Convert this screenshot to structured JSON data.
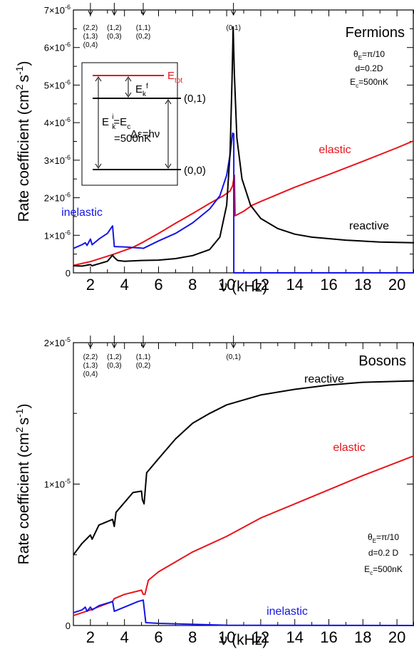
{
  "chart_data": [
    {
      "type": "line",
      "title": "Fermions",
      "xlabel": "ν (kHz)",
      "ylabel": "Rate coefficient (cm^2 s^-1)",
      "xlim": [
        1,
        21
      ],
      "ylim": [
        0,
        7e-06
      ],
      "xticks": [
        2,
        4,
        6,
        8,
        10,
        12,
        14,
        16,
        18,
        20
      ],
      "yticks": [
        {
          "v": 0,
          "base": "0",
          "exp": ""
        },
        {
          "v": 1e-06,
          "base": "1×10",
          "exp": "-6"
        },
        {
          "v": 2e-06,
          "base": "2×10",
          "exp": "-6"
        },
        {
          "v": 3e-06,
          "base": "3×10",
          "exp": "-6"
        },
        {
          "v": 4e-06,
          "base": "4×10",
          "exp": "-6"
        },
        {
          "v": 5e-06,
          "base": "5×10",
          "exp": "-6"
        },
        {
          "v": 6e-06,
          "base": "6×10",
          "exp": "-6"
        },
        {
          "v": 7e-06,
          "base": "7×10",
          "exp": "-6"
        }
      ],
      "params": [
        "θ_E=π/10",
        "d=0.2D",
        "E_c=500nK"
      ],
      "resonances": [
        {
          "x": 2.0,
          "lines": [
            "(2,2)",
            "(1,3)",
            "(0,4)"
          ]
        },
        {
          "x": 3.4,
          "lines": [
            "(1,2)",
            "(0,3)"
          ]
        },
        {
          "x": 5.1,
          "lines": [
            "(1,1)",
            "(0,2)"
          ]
        },
        {
          "x": 10.4,
          "lines": [
            "(0,1)"
          ]
        }
      ],
      "inset": {
        "e_tot": "E_tot",
        "ekf": "E_k^f",
        "level01": "(0,1)",
        "level00": "(0,0)",
        "eki_line1": "E_k^i=E_c",
        "eki_line2": "=500nK",
        "delta": "Δε=hν"
      },
      "series": [
        {
          "name": "elastic",
          "color": "#e8141b",
          "points": [
            [
              1.0,
              2e-07
            ],
            [
              2.0,
              3e-07
            ],
            [
              2.7,
              4e-07
            ],
            [
              3.4,
              5e-07
            ],
            [
              4.5,
              6.8e-07
            ],
            [
              5.1,
              8.2e-07
            ],
            [
              6,
              1.05e-06
            ],
            [
              7,
              1.32e-06
            ],
            [
              8,
              1.58e-06
            ],
            [
              9,
              1.85e-06
            ],
            [
              9.8,
              2.05e-06
            ],
            [
              10.2,
              2.18e-06
            ],
            [
              10.35,
              2.32e-06
            ],
            [
              10.45,
              2.6e-06
            ],
            [
              10.5,
              1.52e-06
            ],
            [
              11.0,
              1.64e-06
            ],
            [
              11.5,
              1.8e-06
            ],
            [
              12,
              1.9e-06
            ],
            [
              14,
              2.28e-06
            ],
            [
              16,
              2.62e-06
            ],
            [
              18,
              2.97e-06
            ],
            [
              20,
              3.33e-06
            ],
            [
              21,
              3.52e-06
            ]
          ]
        },
        {
          "name": "inelastic",
          "color": "#1515e6",
          "points": [
            [
              1.0,
              6.5e-07
            ],
            [
              1.5,
              7.5e-07
            ],
            [
              1.7,
              8e-07
            ],
            [
              1.8,
              7.3e-07
            ],
            [
              2.0,
              9e-07
            ],
            [
              2.1,
              7.5e-07
            ],
            [
              2.5,
              9e-07
            ],
            [
              3.0,
              1.05e-06
            ],
            [
              3.3,
              1.25e-06
            ],
            [
              3.4,
              7e-07
            ],
            [
              4.0,
              6.9e-07
            ],
            [
              5.0,
              6.6e-07
            ],
            [
              5.1,
              6.5e-07
            ],
            [
              6,
              8.5e-07
            ],
            [
              7,
              1.05e-06
            ],
            [
              8,
              1.33e-06
            ],
            [
              9,
              1.7e-06
            ],
            [
              9.6,
              2.05e-06
            ],
            [
              10.0,
              2.6e-06
            ],
            [
              10.2,
              3.15e-06
            ],
            [
              10.35,
              3.72e-06
            ],
            [
              10.42,
              3.7e-06
            ],
            [
              10.42,
              0.0
            ],
            [
              10.5,
              0.0
            ],
            [
              21,
              0.0
            ]
          ]
        },
        {
          "name": "reactive",
          "color": "#000000",
          "points": [
            [
              1.0,
              1.9e-07
            ],
            [
              1.5,
              1.8e-07
            ],
            [
              2.0,
              2.2e-07
            ],
            [
              2.1,
              1.9e-07
            ],
            [
              3.0,
              3.1e-07
            ],
            [
              3.3,
              4.7e-07
            ],
            [
              3.4,
              4.1e-07
            ],
            [
              3.6,
              3.3e-07
            ],
            [
              4,
              3.1e-07
            ],
            [
              5,
              3.3e-07
            ],
            [
              6,
              3.4e-07
            ],
            [
              7,
              3.8e-07
            ],
            [
              8,
              4.6e-07
            ],
            [
              9,
              6.2e-07
            ],
            [
              9.6,
              9.5e-07
            ],
            [
              10.0,
              1.8e-06
            ],
            [
              10.2,
              3.2e-06
            ],
            [
              10.32,
              5.2e-06
            ],
            [
              10.38,
              6.55e-06
            ],
            [
              10.45,
              5.3e-06
            ],
            [
              10.6,
              3.6e-06
            ],
            [
              10.9,
              2.5e-06
            ],
            [
              11.4,
              1.8e-06
            ],
            [
              12,
              1.45e-06
            ],
            [
              13,
              1.18e-06
            ],
            [
              14,
              1.03e-06
            ],
            [
              15,
              9.5e-07
            ],
            [
              17,
              8.7e-07
            ],
            [
              19,
              8.2e-07
            ],
            [
              21,
              8e-07
            ]
          ]
        }
      ]
    },
    {
      "type": "line",
      "title": "Bosons",
      "xlabel": "ν (kHz)",
      "ylabel": "Rate coefficient (cm^2 s^-1)",
      "xlim": [
        1,
        21
      ],
      "ylim": [
        0,
        2e-05
      ],
      "xticks": [
        2,
        4,
        6,
        8,
        10,
        12,
        14,
        16,
        18,
        20
      ],
      "yticks": [
        {
          "v": 0,
          "base": "0",
          "exp": ""
        },
        {
          "v": 1e-05,
          "base": "1×10",
          "exp": "-5"
        },
        {
          "v": 2e-05,
          "base": "2×10",
          "exp": "-5"
        }
      ],
      "params": [
        "θ_E=π/10",
        "d=0.2 D",
        "E_c=500nK"
      ],
      "resonances": [
        {
          "x": 2.0,
          "lines": [
            "(2,2)",
            "(1,3)",
            "(0,4)"
          ]
        },
        {
          "x": 3.4,
          "lines": [
            "(1,2)",
            "(0,3)"
          ]
        },
        {
          "x": 5.1,
          "lines": [
            "(1,1)",
            "(0,2)"
          ]
        },
        {
          "x": 10.4,
          "lines": [
            "(0,1)"
          ]
        }
      ],
      "series": [
        {
          "name": "reactive",
          "color": "#000000",
          "points": [
            [
              1.0,
              5e-06
            ],
            [
              1.5,
              5.8e-06
            ],
            [
              2.0,
              6.4e-06
            ],
            [
              2.1,
              6.1e-06
            ],
            [
              2.5,
              7.1e-06
            ],
            [
              3.3,
              7.5e-06
            ],
            [
              3.4,
              7e-06
            ],
            [
              3.5,
              8e-06
            ],
            [
              4.0,
              8.7e-06
            ],
            [
              4.5,
              9.4e-06
            ],
            [
              5.0,
              9.5e-06
            ],
            [
              5.05,
              8.9e-06
            ],
            [
              5.15,
              8.6e-06
            ],
            [
              5.3,
              1.08e-05
            ],
            [
              6,
              1.18e-05
            ],
            [
              7,
              1.32e-05
            ],
            [
              8,
              1.43e-05
            ],
            [
              9,
              1.5e-05
            ],
            [
              10,
              1.56e-05
            ],
            [
              12,
              1.63e-05
            ],
            [
              14,
              1.67e-05
            ],
            [
              16,
              1.7e-05
            ],
            [
              18,
              1.72e-05
            ],
            [
              21,
              1.73e-05
            ]
          ]
        },
        {
          "name": "elastic",
          "color": "#e8141b",
          "points": [
            [
              1.0,
              7e-07
            ],
            [
              2.0,
              1.1e-06
            ],
            [
              3.3,
              1.7e-06
            ],
            [
              3.4,
              1.9e-06
            ],
            [
              4.0,
              2.2e-06
            ],
            [
              5.0,
              2.5e-06
            ],
            [
              5.1,
              2.2e-06
            ],
            [
              5.2,
              2.2e-06
            ],
            [
              5.4,
              3.2e-06
            ],
            [
              6,
              3.8e-06
            ],
            [
              8,
              5.2e-06
            ],
            [
              10,
              6.3e-06
            ],
            [
              12,
              7.6e-06
            ],
            [
              14,
              8.6e-06
            ],
            [
              16,
              9.6e-06
            ],
            [
              18,
              1.06e-05
            ],
            [
              21,
              1.2e-05
            ]
          ]
        },
        {
          "name": "inelastic",
          "color": "#1515e6",
          "points": [
            [
              1.0,
              9e-07
            ],
            [
              1.5,
              1.1e-06
            ],
            [
              1.7,
              1.3e-06
            ],
            [
              1.8,
              1e-06
            ],
            [
              2.0,
              1.3e-06
            ],
            [
              2.1,
              1.1e-06
            ],
            [
              2.5,
              1.4e-06
            ],
            [
              3.3,
              1.7e-06
            ],
            [
              3.4,
              1e-06
            ],
            [
              4.0,
              1.3e-06
            ],
            [
              4.8,
              1.7e-06
            ],
            [
              5.1,
              1.8e-06
            ],
            [
              5.25,
              2e-07
            ],
            [
              6,
              1.5e-07
            ],
            [
              10,
              2e-08
            ],
            [
              21,
              0
            ]
          ]
        }
      ]
    }
  ]
}
